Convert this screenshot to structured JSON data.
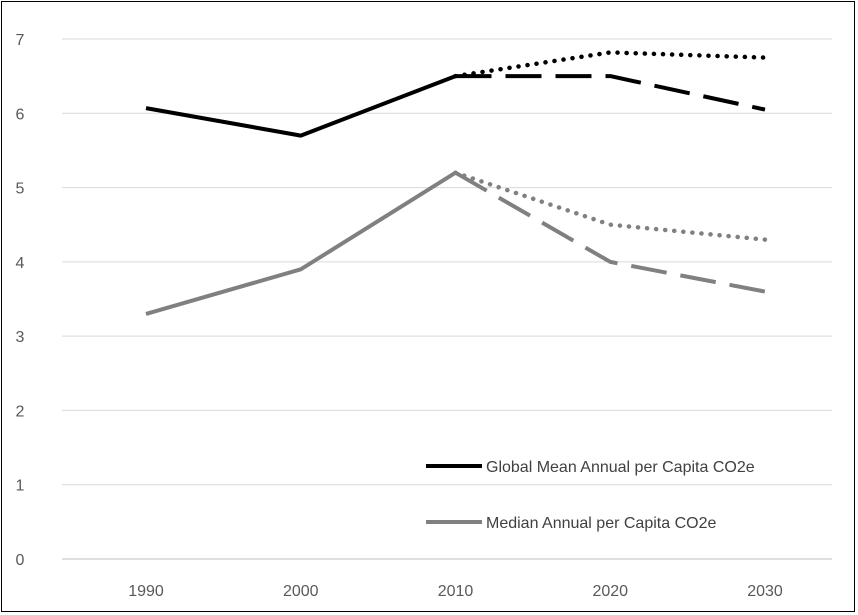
{
  "chart_data": {
    "type": "line",
    "title": "",
    "xlabel": "",
    "ylabel": "",
    "categories": [
      "1990",
      "2000",
      "2010",
      "2020",
      "2030"
    ],
    "ylim": [
      0,
      7
    ],
    "yticks": [
      "0",
      "1",
      "2",
      "3",
      "4",
      "5",
      "6",
      "7"
    ],
    "grid": "horizontal",
    "legend_position": "bottom-right",
    "series": [
      {
        "name": "Global Mean Annual per Capita CO2e",
        "color": "#000000",
        "style": "solid",
        "values": [
          6.07,
          5.7,
          6.5,
          null,
          null
        ]
      },
      {
        "name": "",
        "color": "#000000",
        "style": "dotted",
        "values": [
          null,
          null,
          6.5,
          6.82,
          6.75
        ]
      },
      {
        "name": "",
        "color": "#000000",
        "style": "dashed",
        "values": [
          null,
          null,
          6.5,
          6.5,
          6.05
        ]
      },
      {
        "name": "Median Annual per Capita CO2e",
        "color": "#808080",
        "style": "solid",
        "values": [
          3.3,
          3.9,
          5.2,
          null,
          null
        ]
      },
      {
        "name": "",
        "color": "#808080",
        "style": "dotted",
        "values": [
          null,
          null,
          5.2,
          4.5,
          4.3
        ]
      },
      {
        "name": "",
        "color": "#808080",
        "style": "dashed",
        "values": [
          null,
          null,
          5.2,
          4.0,
          3.6
        ]
      }
    ]
  }
}
